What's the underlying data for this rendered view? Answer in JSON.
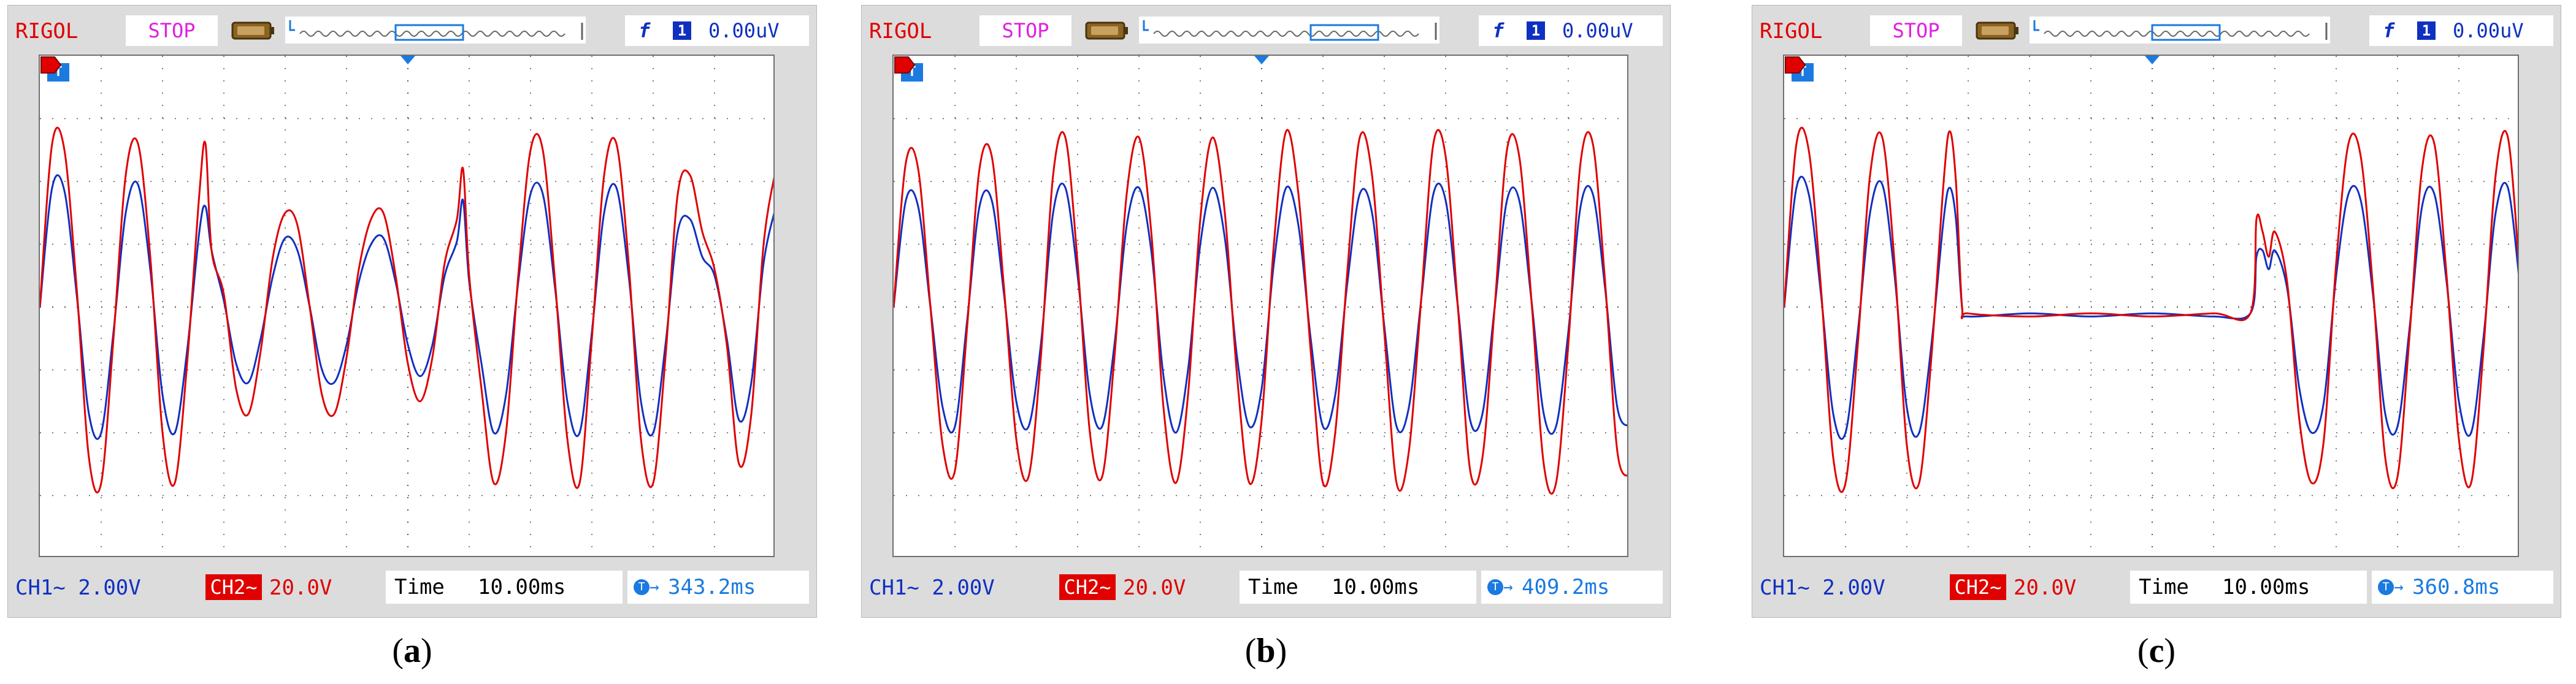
{
  "panels": [
    {
      "brand": "RIGOL",
      "run_state": "STOP",
      "trigger": {
        "edge_symbol": "f",
        "source": "1",
        "level": "0.00uV"
      },
      "ch1": {
        "label": "CH1",
        "coupling_symbol": "~",
        "scale": "2.00V"
      },
      "ch2": {
        "tag": "CH2~",
        "scale": "20.0V"
      },
      "timebase": {
        "label": "Time",
        "value": "10.00ms"
      },
      "trigger_offset": {
        "value": "343.2ms"
      },
      "caption": {
        "open": "(",
        "letter": "a",
        "close": ")"
      }
    },
    {
      "brand": "RIGOL",
      "run_state": "STOP",
      "trigger": {
        "edge_symbol": "f",
        "source": "1",
        "level": "0.00uV"
      },
      "ch1": {
        "label": "CH1",
        "coupling_symbol": "~",
        "scale": "2.00V"
      },
      "ch2": {
        "tag": "CH2~",
        "scale": "20.0V"
      },
      "timebase": {
        "label": "Time",
        "value": "10.00ms"
      },
      "trigger_offset": {
        "value": "409.2ms"
      },
      "caption": {
        "open": "(",
        "letter": "b",
        "close": ")"
      }
    },
    {
      "brand": "RIGOL",
      "run_state": "STOP",
      "trigger": {
        "edge_symbol": "f",
        "source": "1",
        "level": "0.00uV"
      },
      "ch1": {
        "label": "CH1",
        "coupling_symbol": "~",
        "scale": "2.00V"
      },
      "ch2": {
        "tag": "CH2~",
        "scale": "20.0V"
      },
      "timebase": {
        "label": "Time",
        "value": "10.00ms"
      },
      "trigger_offset": {
        "value": "360.8ms"
      },
      "caption": {
        "open": "(",
        "letter": "c",
        "close": ")"
      }
    }
  ],
  "colors": {
    "ch1": "#1030c0",
    "ch2": "#e00000",
    "grid": "#555555",
    "marker": "#1a7ae0"
  },
  "chart_data": [
    {
      "type": "line",
      "xlim": [
        0,
        120
      ],
      "ylim": [
        -4,
        4
      ],
      "grid": true,
      "series": [
        {
          "x": [
            0,
            2,
            4,
            6,
            8,
            10,
            12,
            14,
            16,
            18,
            20,
            22,
            24,
            26,
            27,
            28,
            30,
            32,
            34,
            36,
            38,
            40,
            42,
            44,
            46,
            48,
            50,
            52,
            54,
            56,
            58,
            60,
            62,
            64,
            66,
            68,
            69,
            70,
            72,
            74,
            76,
            78,
            80,
            82,
            84,
            86,
            88,
            90,
            92,
            94,
            96,
            98,
            100,
            102,
            104,
            106,
            108,
            110,
            112,
            114,
            116,
            118,
            120
          ],
          "values": [
            0,
            1.9,
            1.85,
            0.2,
            -1.7,
            -2,
            -0.4,
            1.5,
            1.95,
            0.6,
            -1.4,
            -2,
            -0.7,
            1.2,
            1.6,
            0.9,
            0.1,
            -0.9,
            -1.2,
            -0.5,
            0.5,
            1.1,
            0.9,
            0,
            -1,
            -1.2,
            -0.6,
            0.4,
            1,
            1.1,
            0.4,
            -0.6,
            -1.1,
            -0.6,
            0.5,
            1.05,
            1.7,
            0.4,
            -0.9,
            -2,
            -1.4,
            0.4,
            1.8,
            1.8,
            0.3,
            -1.5,
            -2,
            -0.4,
            1.5,
            1.9,
            0.5,
            -1.5,
            -2,
            -0.6,
            1.2,
            1.4,
            0.8,
            0.5,
            -0.5,
            -1.8,
            -1.2,
            0.7,
            1.6
          ]
        },
        {
          "x": [
            0,
            2,
            4,
            6,
            8,
            10,
            12,
            14,
            16,
            18,
            20,
            22,
            24,
            26,
            27,
            28,
            30,
            32,
            34,
            36,
            38,
            40,
            42,
            44,
            46,
            48,
            50,
            52,
            54,
            56,
            58,
            60,
            62,
            64,
            66,
            68,
            69,
            70,
            72,
            74,
            76,
            78,
            80,
            82,
            84,
            86,
            88,
            90,
            92,
            94,
            96,
            98,
            100,
            102,
            104,
            106,
            108,
            110,
            112,
            114,
            116,
            118,
            120
          ],
          "values": [
            0,
            2.6,
            2.5,
            0.3,
            -2.4,
            -2.8,
            -0.5,
            2.1,
            2.6,
            0.8,
            -2,
            -2.8,
            -0.9,
            1.8,
            2.6,
            0.9,
            0.2,
            -1.3,
            -1.7,
            -0.7,
            0.8,
            1.5,
            1.3,
            0,
            -1.4,
            -1.7,
            -0.8,
            0.6,
            1.4,
            1.5,
            0.5,
            -0.9,
            -1.5,
            -0.8,
            0.7,
            1.4,
            2.2,
            0.5,
            -1.3,
            -2.8,
            -2,
            0.5,
            2.5,
            2.5,
            0.4,
            -2.1,
            -2.8,
            -0.5,
            2.1,
            2.6,
            0.7,
            -2.1,
            -2.8,
            -0.8,
            1.8,
            2.1,
            1.2,
            0.6,
            -0.6,
            -2.5,
            -1.7,
            1,
            2.2
          ]
        }
      ]
    },
    {
      "type": "line",
      "xlim": [
        0,
        120
      ],
      "ylim": [
        -4,
        4
      ],
      "grid": true,
      "series": [
        {
          "x": [
            0,
            2,
            4,
            6,
            8,
            10,
            12,
            14,
            16,
            18,
            20,
            22,
            24,
            26,
            28,
            30,
            32,
            34,
            36,
            38,
            40,
            42,
            44,
            46,
            48,
            50,
            52,
            54,
            56,
            58,
            60,
            62,
            64,
            66,
            68,
            70,
            72,
            74,
            76,
            78,
            80,
            82,
            84,
            86,
            88,
            90,
            92,
            94,
            96,
            98,
            100,
            102,
            104,
            106,
            108,
            110,
            112,
            114,
            116,
            118,
            120
          ],
          "values": [
            0,
            1.7,
            1.6,
            0,
            -1.6,
            -1.9,
            -0.2,
            1.6,
            1.7,
            0.2,
            -1.5,
            -1.9,
            -0.6,
            1.5,
            1.9,
            0.5,
            -1.4,
            -1.9,
            -0.6,
            1.3,
            1.9,
            0.9,
            -1.1,
            -2,
            -1,
            1,
            1.9,
            1.1,
            -0.8,
            -1.9,
            -1.3,
            0.7,
            1.9,
            1.3,
            -0.5,
            -1.9,
            -1.4,
            0.4,
            1.8,
            1.5,
            -0.3,
            -1.9,
            -1.6,
            0.1,
            1.8,
            1.7,
            0,
            -1.8,
            -1.7,
            0,
            1.7,
            1.7,
            0.1,
            -1.7,
            -1.9,
            -0.4,
            1.6,
            1.8,
            0.3,
            -1.6,
            -1.9
          ]
        },
        {
          "x": [
            0,
            2,
            4,
            6,
            8,
            10,
            12,
            14,
            16,
            18,
            20,
            22,
            24,
            26,
            28,
            30,
            32,
            34,
            36,
            38,
            40,
            42,
            44,
            46,
            48,
            50,
            52,
            54,
            56,
            58,
            60,
            62,
            64,
            66,
            68,
            70,
            72,
            74,
            76,
            78,
            80,
            82,
            84,
            86,
            88,
            90,
            92,
            94,
            96,
            98,
            100,
            102,
            104,
            106,
            108,
            110,
            112,
            114,
            116,
            118,
            120
          ],
          "values": [
            0,
            2.3,
            2.2,
            0,
            -2.2,
            -2.6,
            -0.3,
            2.2,
            2.4,
            0.3,
            -2.1,
            -2.7,
            -0.8,
            2.1,
            2.7,
            0.7,
            -2,
            -2.7,
            -0.8,
            1.8,
            2.7,
            1.2,
            -1.6,
            -2.8,
            -1.4,
            1.4,
            2.7,
            1.5,
            -1.1,
            -2.8,
            -1.8,
            1,
            2.8,
            1.8,
            -0.7,
            -2.8,
            -2,
            0.6,
            2.7,
            2.1,
            -0.4,
            -2.8,
            -2.3,
            0.1,
            2.6,
            2.4,
            0,
            -2.6,
            -2.4,
            0,
            2.5,
            2.4,
            0.1,
            -2.5,
            -2.8,
            -0.6,
            2.3,
            2.6,
            0.4,
            -2.3,
            -2.7
          ]
        }
      ]
    },
    {
      "type": "line",
      "xlim": [
        0,
        120
      ],
      "ylim": [
        -4,
        4
      ],
      "grid": true,
      "series": [
        {
          "x": [
            0,
            2,
            4,
            6,
            8,
            10,
            12,
            14,
            16,
            18,
            20,
            22,
            24,
            26,
            27,
            28,
            29,
            30,
            40,
            50,
            60,
            70,
            76,
            77,
            78,
            79,
            80,
            82,
            84,
            86,
            88,
            90,
            92,
            94,
            96,
            98,
            100,
            102,
            104,
            106,
            108,
            110,
            112,
            114,
            116,
            118,
            120
          ],
          "values": [
            0,
            1.9,
            1.8,
            0.2,
            -1.7,
            -2,
            -0.4,
            1.5,
            1.95,
            0.5,
            -1.6,
            -2,
            -0.6,
            1.4,
            1.9,
            1.4,
            0,
            -0.15,
            -0.1,
            -0.15,
            -0.1,
            -0.15,
            -0.1,
            0.8,
            0.9,
            0.6,
            0.9,
            0.3,
            -1.3,
            -2,
            -1.5,
            0.5,
            1.8,
            1.7,
            0.2,
            -1.7,
            -1.9,
            -0.3,
            1.6,
            1.8,
            0.4,
            -1.5,
            -2,
            -0.5,
            1.5,
            1.9,
            0.3
          ]
        },
        {
          "x": [
            0,
            2,
            4,
            6,
            8,
            10,
            12,
            14,
            16,
            18,
            20,
            22,
            24,
            26,
            27,
            28,
            29,
            30,
            40,
            50,
            60,
            70,
            76,
            77,
            78,
            79,
            80,
            82,
            84,
            86,
            88,
            90,
            92,
            94,
            96,
            98,
            100,
            102,
            104,
            106,
            108,
            110,
            112,
            114,
            116,
            118,
            120
          ],
          "values": [
            0,
            2.6,
            2.5,
            0.3,
            -2.4,
            -2.8,
            -0.6,
            2.1,
            2.7,
            0.7,
            -2.2,
            -2.8,
            -0.8,
            2,
            2.8,
            2,
            0,
            -0.1,
            -0.15,
            -0.1,
            -0.15,
            -0.1,
            -0.1,
            1.4,
            1.2,
            0.8,
            1.2,
            0.4,
            -1.8,
            -2.8,
            -2.1,
            0.7,
            2.6,
            2.4,
            0.3,
            -2.4,
            -2.7,
            -0.4,
            2.2,
            2.6,
            0.5,
            -2.1,
            -2.8,
            -0.7,
            2.1,
            2.7,
            0.4
          ]
        }
      ]
    }
  ]
}
